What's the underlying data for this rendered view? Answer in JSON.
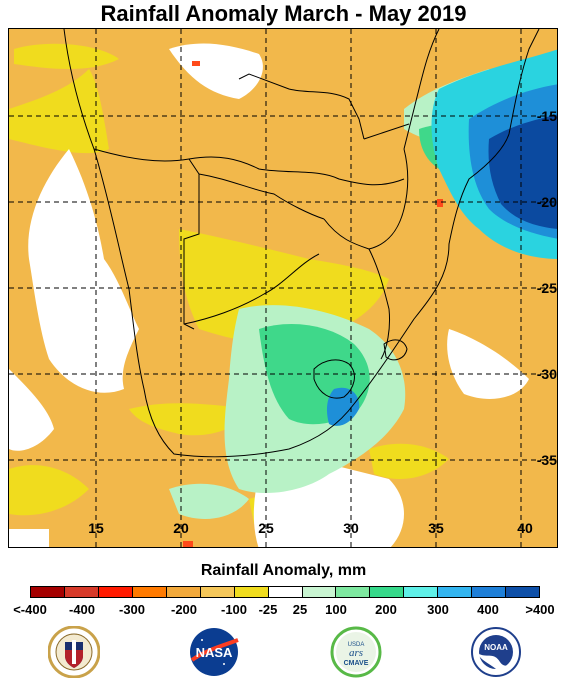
{
  "title": "Rainfall Anomaly March - May 2019",
  "map": {
    "longitude_labels": [
      "15",
      "20",
      "25",
      "30",
      "35",
      "40"
    ],
    "latitude_labels": [
      "-15",
      "-20",
      "-25",
      "-30",
      "-35"
    ],
    "colors": {
      "drought_orange": "#f2b84b",
      "dry_yellow": "#f0dc1e",
      "near_normal": "#ffffff",
      "wet_light": "#b8f2c6",
      "wet_green": "#3fd88a",
      "wet_cyan": "#2ad3e0",
      "wet_blue": "#1e8fd8",
      "wet_dark": "#0b4aa0"
    }
  },
  "legend": {
    "title": "Rainfall Anomaly, mm",
    "colors": [
      "#a50000",
      "#d73a2a",
      "#ff1a00",
      "#ff7a00",
      "#f2a93b",
      "#f5c75a",
      "#f0dc1e",
      "#ffffff",
      "#c9f5d2",
      "#7ee8a0",
      "#36d98a",
      "#5ff0e8",
      "#33b5f0",
      "#1e7fd8",
      "#0d4fa8"
    ],
    "labels": [
      "<-400",
      "-400",
      "-300",
      "-200",
      "-100",
      "-25",
      "25",
      "100",
      "200",
      "300",
      "400",
      ">400"
    ]
  },
  "logos": [
    {
      "name": "defense-health-agency-seal",
      "icon": "seal"
    },
    {
      "name": "nasa-logo",
      "icon": "nasa-meatball",
      "text": "NASA"
    },
    {
      "name": "usda-ars-cmave-logo",
      "icon": "usda-circle",
      "text": "CMAVE"
    },
    {
      "name": "noaa-logo",
      "icon": "noaa-circle",
      "text": "NOAA"
    }
  ]
}
